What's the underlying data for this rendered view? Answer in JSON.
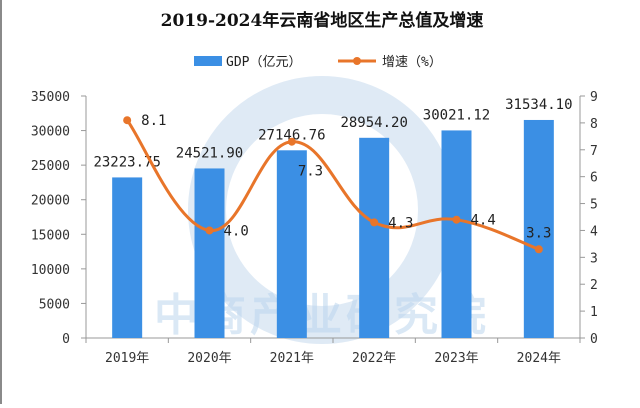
{
  "chart_data": {
    "type": "bar+line",
    "title": "2019-2024年云南省地区生产总值及增速",
    "categories": [
      "2019年",
      "2020年",
      "2021年",
      "2022年",
      "2023年",
      "2024年"
    ],
    "series": [
      {
        "name": "GDP（亿元）",
        "type": "bar",
        "axis": "left",
        "values": [
          23223.75,
          24521.9,
          27146.76,
          28954.2,
          30021.12,
          31534.1
        ],
        "labels": [
          "23223.75",
          "24521.90",
          "27146.76",
          "28954.20",
          "30021.12",
          "31534.10"
        ],
        "color": "#3b8fe4"
      },
      {
        "name": "增速（%）",
        "type": "line",
        "axis": "right",
        "smooth": true,
        "values": [
          8.1,
          4.0,
          7.3,
          4.3,
          4.4,
          3.3
        ],
        "labels": [
          "8.1",
          "4.0",
          "7.3",
          "4.3",
          "4.4",
          "3.3"
        ],
        "color": "#e8752a"
      }
    ],
    "y_left": {
      "range": [
        0,
        35000
      ],
      "ticks": [
        "0",
        "5000",
        "10000",
        "15000",
        "20000",
        "25000",
        "30000",
        "35000"
      ]
    },
    "y_right": {
      "range": [
        0,
        9
      ],
      "ticks": [
        "0",
        "1",
        "2",
        "3",
        "4",
        "5",
        "6",
        "7",
        "8",
        "9"
      ]
    },
    "grid": false,
    "legend_position": "top",
    "watermark": "中商产业研究院"
  }
}
